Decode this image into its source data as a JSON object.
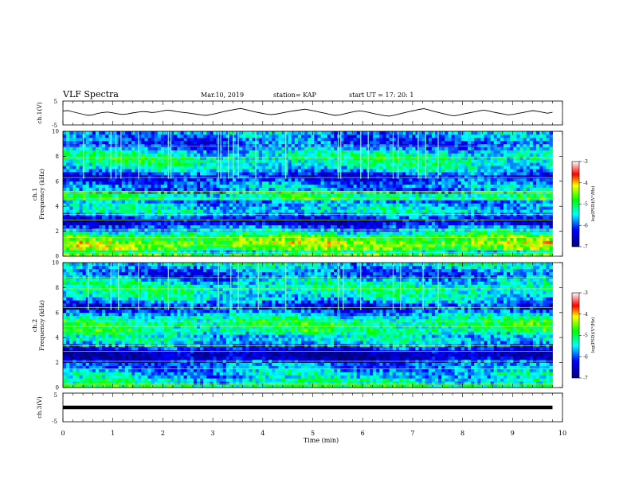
{
  "header": {
    "title": "VLF Spectra",
    "date": "Mar.10, 2019",
    "station": "station= KAP",
    "start": "start  UT =   17: 20:  1"
  },
  "chart_data": [
    {
      "type": "line",
      "panel": "ch1-waveform",
      "ylabel": "ch.1(V)",
      "ylim": [
        -5,
        5
      ],
      "yticks": [
        "5",
        "-5"
      ],
      "x_range_min": [
        0,
        9.8
      ],
      "series": [
        {
          "values": [
            0.8,
            1.0,
            0.5,
            0.0,
            -0.5,
            -1.0,
            -0.8,
            -0.2,
            0.2,
            0.4,
            0.1,
            -0.3,
            -0.6,
            -0.4,
            0.0,
            0.3,
            0.6,
            0.5,
            0.2,
            0.4,
            0.8,
            1.2,
            1.0,
            0.6,
            0.3,
            0.1,
            -0.2,
            -0.5,
            -0.8,
            -1.0,
            -0.6,
            -0.2,
            0.3,
            0.8,
            1.2,
            1.6,
            1.9,
            1.4,
            0.9,
            0.4,
            0.0,
            -0.4,
            -0.7,
            -0.5,
            -0.1,
            0.3,
            0.7,
            1.0,
            1.3,
            1.6,
            1.2,
            0.8,
            0.3,
            -0.1,
            -0.6,
            -1.0,
            -0.8,
            -0.3,
            0.2,
            0.6,
            0.9,
            0.6,
            0.2,
            -0.3,
            -0.7,
            -1.1,
            -1.3,
            -0.9,
            -0.4,
            0.1,
            0.6,
            1.0,
            1.5,
            1.8,
            1.3,
            0.7,
            0.2,
            -0.3,
            -0.8,
            -1.2,
            -0.9,
            -0.4,
            0.0,
            0.4,
            0.8,
            1.2,
            0.9,
            0.4,
            0.0,
            -0.4,
            -0.8,
            -0.6,
            -0.2,
            0.2,
            0.6,
            1.0,
            0.7,
            0.3,
            -0.1,
            0.3
          ]
        }
      ]
    },
    {
      "type": "heatmap",
      "panel": "ch1-spectrogram",
      "ylabel": "Frequency (kHz)",
      "channel_label": "ch.1",
      "ylim": [
        0,
        10
      ],
      "yticks": [
        "0",
        "2",
        "4",
        "6",
        "8",
        "10"
      ],
      "colorbar": {
        "label": "log(PSD)(V²/Hz)",
        "range": [
          -7,
          -3
        ],
        "ticks": [
          "-3",
          "-4",
          "-5",
          "-6",
          "-7"
        ]
      },
      "band_profile_log_psd": [
        -4.6,
        -5.3,
        -4.6,
        -4.5,
        -4.4,
        -4.7,
        -4.8,
        -5.2,
        -5.6,
        -5.9,
        -6.3,
        -6.5,
        -6.1,
        -5.7,
        -5.4,
        -5.5,
        -5.6,
        -5.8,
        -5.0,
        -5.2,
        -5.6,
        -5.8,
        -5.7,
        -5.9,
        -6.1,
        -6.3,
        -6.0,
        -5.6,
        -5.4,
        -5.3,
        -5.2,
        -5.2,
        -5.3,
        -5.4,
        -5.7,
        -6.0,
        -6.0,
        -5.9,
        -5.8,
        -5.7
      ],
      "line_freqs_khz": [
        0.3,
        0.9,
        1.5,
        2.1,
        2.9,
        3.35,
        4.6,
        5.05,
        5.2,
        6.3,
        7.9,
        8.8
      ],
      "burst_times_min": [
        0.4,
        0.95,
        1.05,
        1.15,
        1.5,
        2.1,
        2.15,
        3.1,
        3.15,
        3.3,
        3.4,
        3.5,
        3.85,
        4.45,
        5.5,
        5.55,
        5.95,
        6.1,
        6.6,
        6.7,
        7.1,
        7.25,
        7.5
      ]
    },
    {
      "type": "heatmap",
      "panel": "ch2-spectrogram",
      "ylabel": "Frequency (kHz)",
      "channel_label": "ch.2",
      "ylim": [
        0,
        10
      ],
      "yticks": [
        "0",
        "2",
        "4",
        "6",
        "8",
        "10"
      ],
      "colorbar": {
        "label": "log(PSD)(V²/Hz)",
        "range": [
          -7,
          -3
        ],
        "ticks": [
          "-3",
          "-4",
          "-5",
          "-6",
          "-7"
        ]
      },
      "band_profile_log_psd": [
        -5.0,
        -5.4,
        -5.3,
        -5.6,
        -5.5,
        -5.7,
        -5.8,
        -5.9,
        -6.2,
        -6.5,
        -6.7,
        -6.6,
        -6.2,
        -5.9,
        -5.6,
        -5.4,
        -5.5,
        -5.3,
        -5.0,
        -5.2,
        -5.0,
        -5.1,
        -5.3,
        -5.6,
        -5.9,
        -6.2,
        -6.1,
        -5.8,
        -5.5,
        -5.4,
        -5.3,
        -5.2,
        -5.3,
        -5.4,
        -5.6,
        -5.9,
        -6.0,
        -5.8,
        -5.6,
        -5.4
      ],
      "line_freqs_khz": [
        0.3,
        1.5,
        2.1,
        2.9,
        3.35,
        4.9,
        5.3,
        6.4,
        7.9,
        8.8
      ],
      "burst_times_min": [
        0.5,
        0.95,
        1.1,
        1.5,
        2.1,
        3.1,
        3.35,
        3.5,
        3.9,
        4.45,
        5.5,
        5.6,
        5.95,
        6.6,
        6.75,
        7.2,
        7.5
      ]
    },
    {
      "type": "line",
      "panel": "ch3-waveform",
      "ylabel": "ch.3(V)",
      "ylim": [
        -5,
        5
      ],
      "yticks": [
        "5",
        "-5"
      ],
      "series": [
        {
          "values": [
            0.0,
            0.0
          ]
        }
      ],
      "x_range_min": [
        0,
        9.8
      ]
    }
  ],
  "xaxis": {
    "label": "Time  (min)",
    "ticks": [
      "0",
      "1",
      "2",
      "3",
      "4",
      "5",
      "6",
      "7",
      "8",
      "9",
      "10"
    ],
    "range": [
      0,
      10
    ]
  },
  "colors": {
    "line": "#000000",
    "frame": "#000000"
  }
}
